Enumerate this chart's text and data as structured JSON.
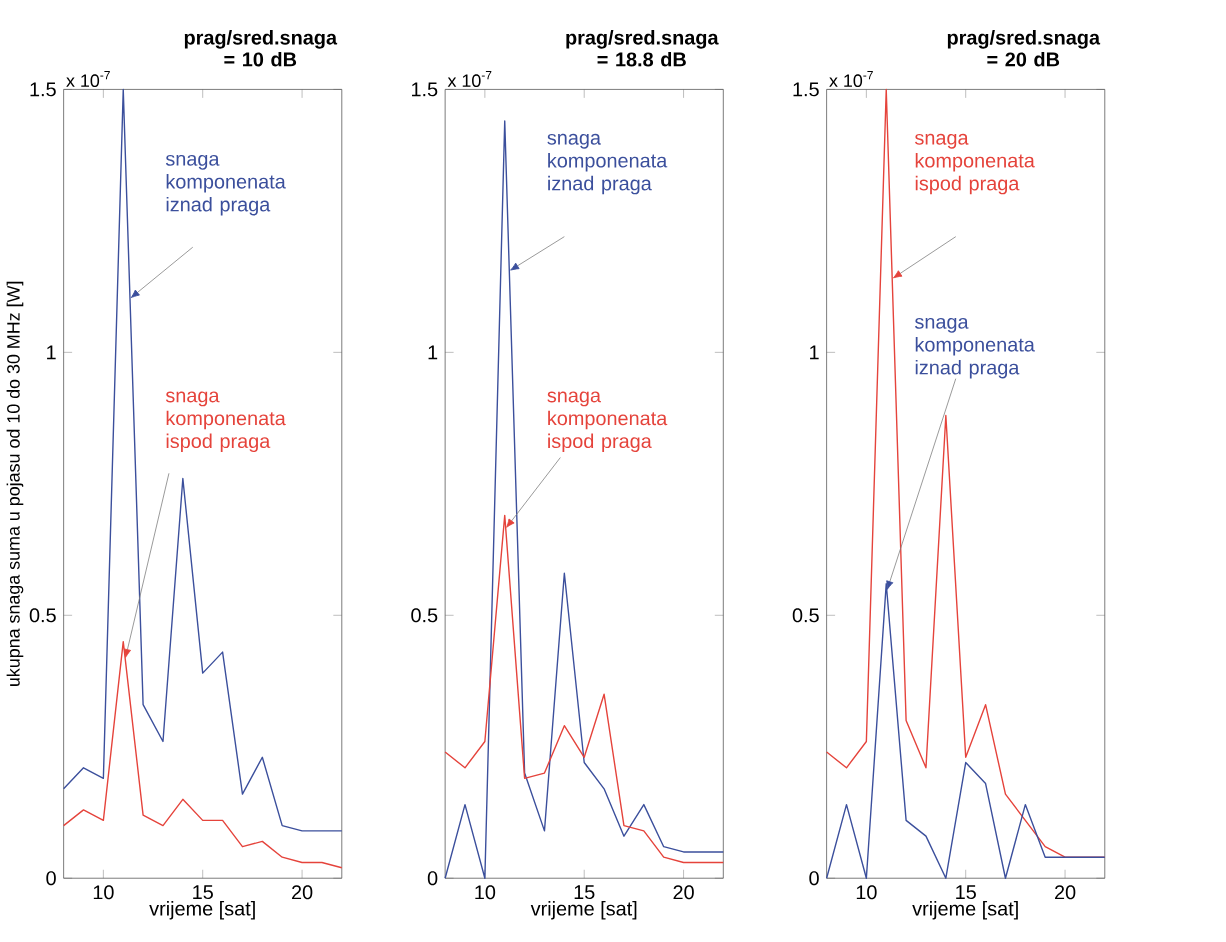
{
  "chart_data": [
    {
      "type": "line",
      "title": "prag/sred.snaga = 10 dB",
      "xlabel": "vrijeme [sat]",
      "ylabel": "ukupna snaga suma u pojasu od 10 do 30 MHz [W]",
      "annotations": [
        "x 10$^{-7}$"
      ],
      "x": [
        8,
        9,
        10,
        11,
        12,
        13,
        14,
        15,
        16,
        17,
        18,
        19,
        20,
        21,
        22
      ],
      "xlim": [
        8,
        22
      ],
      "xticks": [
        10,
        15,
        20
      ],
      "ylim": [
        0,
        1.5
      ],
      "yticks": [
        0,
        0.5,
        1,
        1.5
      ],
      "series": [
        {
          "name": "snaga komponenata iznad praga",
          "color": "#3b4f9c",
          "values": [
            0.17,
            0.21,
            0.19,
            1.5,
            0.33,
            0.26,
            0.76,
            0.39,
            0.43,
            0.16,
            0.23,
            0.1,
            0.09,
            0.09,
            0.09
          ]
        },
        {
          "name": "snaga komponenata ispod praga",
          "color": "#e5433b",
          "values": [
            0.1,
            0.13,
            0.11,
            0.45,
            0.12,
            0.1,
            0.15,
            0.11,
            0.11,
            0.06,
            0.07,
            0.04,
            0.03,
            0.03,
            0.02
          ]
        }
      ]
    },
    {
      "type": "line",
      "title": "prag/sred.snaga = 18.8 dB",
      "xlabel": "vrijeme [sat]",
      "annotations": [
        "x 10$^{-7}$"
      ],
      "x": [
        8,
        9,
        10,
        11,
        12,
        13,
        14,
        15,
        16,
        17,
        18,
        19,
        20,
        21,
        22
      ],
      "xlim": [
        8,
        22
      ],
      "xticks": [
        10,
        15,
        20
      ],
      "ylim": [
        0,
        1.5
      ],
      "yticks": [
        0,
        0.5,
        1,
        1.5
      ],
      "series": [
        {
          "name": "snaga komponenata iznad praga",
          "color": "#3b4f9c",
          "values": [
            0,
            0.14,
            0,
            1.44,
            0.2,
            0.09,
            0.58,
            0.22,
            0.17,
            0.08,
            0.14,
            0.06,
            0.05,
            0.05,
            0.05
          ]
        },
        {
          "name": "snaga komponenata ispod praga",
          "color": "#e5433b",
          "values": [
            0.24,
            0.21,
            0.26,
            0.69,
            0.19,
            0.2,
            0.29,
            0.23,
            0.35,
            0.1,
            0.09,
            0.04,
            0.03,
            0.03,
            0.03
          ]
        }
      ]
    },
    {
      "type": "line",
      "title": "prag/sred.snaga = 20 dB",
      "xlabel": "vrijeme [sat]",
      "annotations": [
        "x 10$^{-7}$"
      ],
      "x": [
        8,
        9,
        10,
        11,
        12,
        13,
        14,
        15,
        16,
        17,
        18,
        19,
        20,
        21,
        22
      ],
      "xlim": [
        8,
        22
      ],
      "xticks": [
        10,
        15,
        20
      ],
      "ylim": [
        0,
        1.5
      ],
      "yticks": [
        0,
        0.5,
        1,
        1.5
      ],
      "series": [
        {
          "name": "snaga komponenata ispod praga",
          "color": "#e5433b",
          "values": [
            0.24,
            0.21,
            0.26,
            1.5,
            0.3,
            0.21,
            0.88,
            0.23,
            0.33,
            0.16,
            0.11,
            0.06,
            0.04,
            0.04,
            0.04
          ]
        },
        {
          "name": "snaga komponenata iznad praga",
          "color": "#3b4f9c",
          "values": [
            0,
            0.14,
            0,
            0.56,
            0.11,
            0.08,
            0,
            0.22,
            0.18,
            0,
            0.14,
            0.04,
            0.04,
            0.04,
            0.04
          ]
        }
      ]
    }
  ]
}
